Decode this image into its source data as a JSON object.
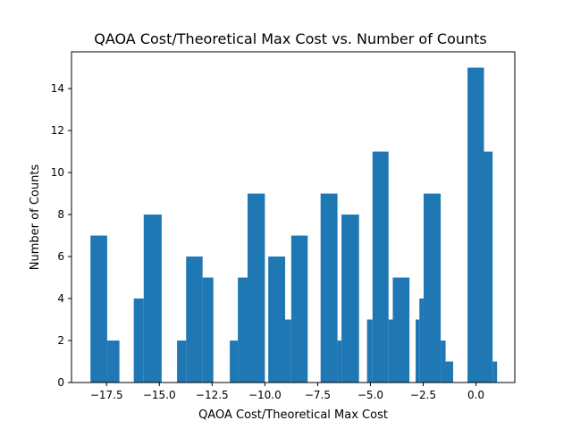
{
  "chart_data": {
    "type": "bar",
    "title": "QAOA Cost/Theoretical Max Cost vs. Number of Counts",
    "xlabel": "QAOA Cost/Theoretical Max Cost",
    "ylabel": "Number of Counts",
    "xlim": [
      -19.16,
      1.84
    ],
    "ylim": [
      0,
      15.75
    ],
    "grid": false,
    "legend": "none",
    "bar_color": "#1f77b4",
    "x_ticks": [
      {
        "value": -17.5,
        "label": "−17.5"
      },
      {
        "value": -15.0,
        "label": "−15.0"
      },
      {
        "value": -12.5,
        "label": "−12.5"
      },
      {
        "value": -10.0,
        "label": "−10.0"
      },
      {
        "value": -7.5,
        "label": "−7.5"
      },
      {
        "value": -5.0,
        "label": "−5.0"
      },
      {
        "value": -2.5,
        "label": "−2.5"
      },
      {
        "value": 0.0,
        "label": "0.0"
      }
    ],
    "y_ticks": [
      {
        "value": 0,
        "label": "0"
      },
      {
        "value": 2,
        "label": "2"
      },
      {
        "value": 4,
        "label": "4"
      },
      {
        "value": 6,
        "label": "6"
      },
      {
        "value": 8,
        "label": "8"
      },
      {
        "value": 10,
        "label": "10"
      },
      {
        "value": 12,
        "label": "12"
      },
      {
        "value": 14,
        "label": "14"
      }
    ],
    "bars": [
      {
        "x0": -18.26,
        "x1": -17.47,
        "value": 7
      },
      {
        "x0": -17.47,
        "x1": -16.89,
        "value": 2
      },
      {
        "x0": -16.21,
        "x1": -15.74,
        "value": 4
      },
      {
        "x0": -15.74,
        "x1": -14.89,
        "value": 8
      },
      {
        "x0": -14.16,
        "x1": -13.73,
        "value": 2
      },
      {
        "x0": -13.73,
        "x1": -12.95,
        "value": 6
      },
      {
        "x0": -12.95,
        "x1": -12.44,
        "value": 5
      },
      {
        "x0": -11.66,
        "x1": -11.28,
        "value": 2
      },
      {
        "x0": -11.28,
        "x1": -10.82,
        "value": 5
      },
      {
        "x0": -10.82,
        "x1": -10.0,
        "value": 9
      },
      {
        "x0": -9.84,
        "x1": -9.04,
        "value": 6
      },
      {
        "x0": -9.04,
        "x1": -8.75,
        "value": 3
      },
      {
        "x0": -8.75,
        "x1": -7.97,
        "value": 7
      },
      {
        "x0": -7.36,
        "x1": -6.56,
        "value": 9
      },
      {
        "x0": -6.56,
        "x1": -6.37,
        "value": 2
      },
      {
        "x0": -6.37,
        "x1": -5.54,
        "value": 8
      },
      {
        "x0": -5.16,
        "x1": -4.9,
        "value": 3
      },
      {
        "x0": -4.9,
        "x1": -4.14,
        "value": 11
      },
      {
        "x0": -4.14,
        "x1": -3.94,
        "value": 3
      },
      {
        "x0": -3.94,
        "x1": -3.15,
        "value": 5
      },
      {
        "x0": -2.86,
        "x1": -2.68,
        "value": 3
      },
      {
        "x0": -2.68,
        "x1": -2.48,
        "value": 4
      },
      {
        "x0": -2.48,
        "x1": -1.67,
        "value": 9
      },
      {
        "x0": -1.67,
        "x1": -1.44,
        "value": 2
      },
      {
        "x0": -1.44,
        "x1": -1.08,
        "value": 1
      },
      {
        "x0": -0.4,
        "x1": 0.38,
        "value": 15
      },
      {
        "x0": 0.38,
        "x1": 0.79,
        "value": 11
      },
      {
        "x0": 0.79,
        "x1": 1.0,
        "value": 1
      }
    ]
  }
}
